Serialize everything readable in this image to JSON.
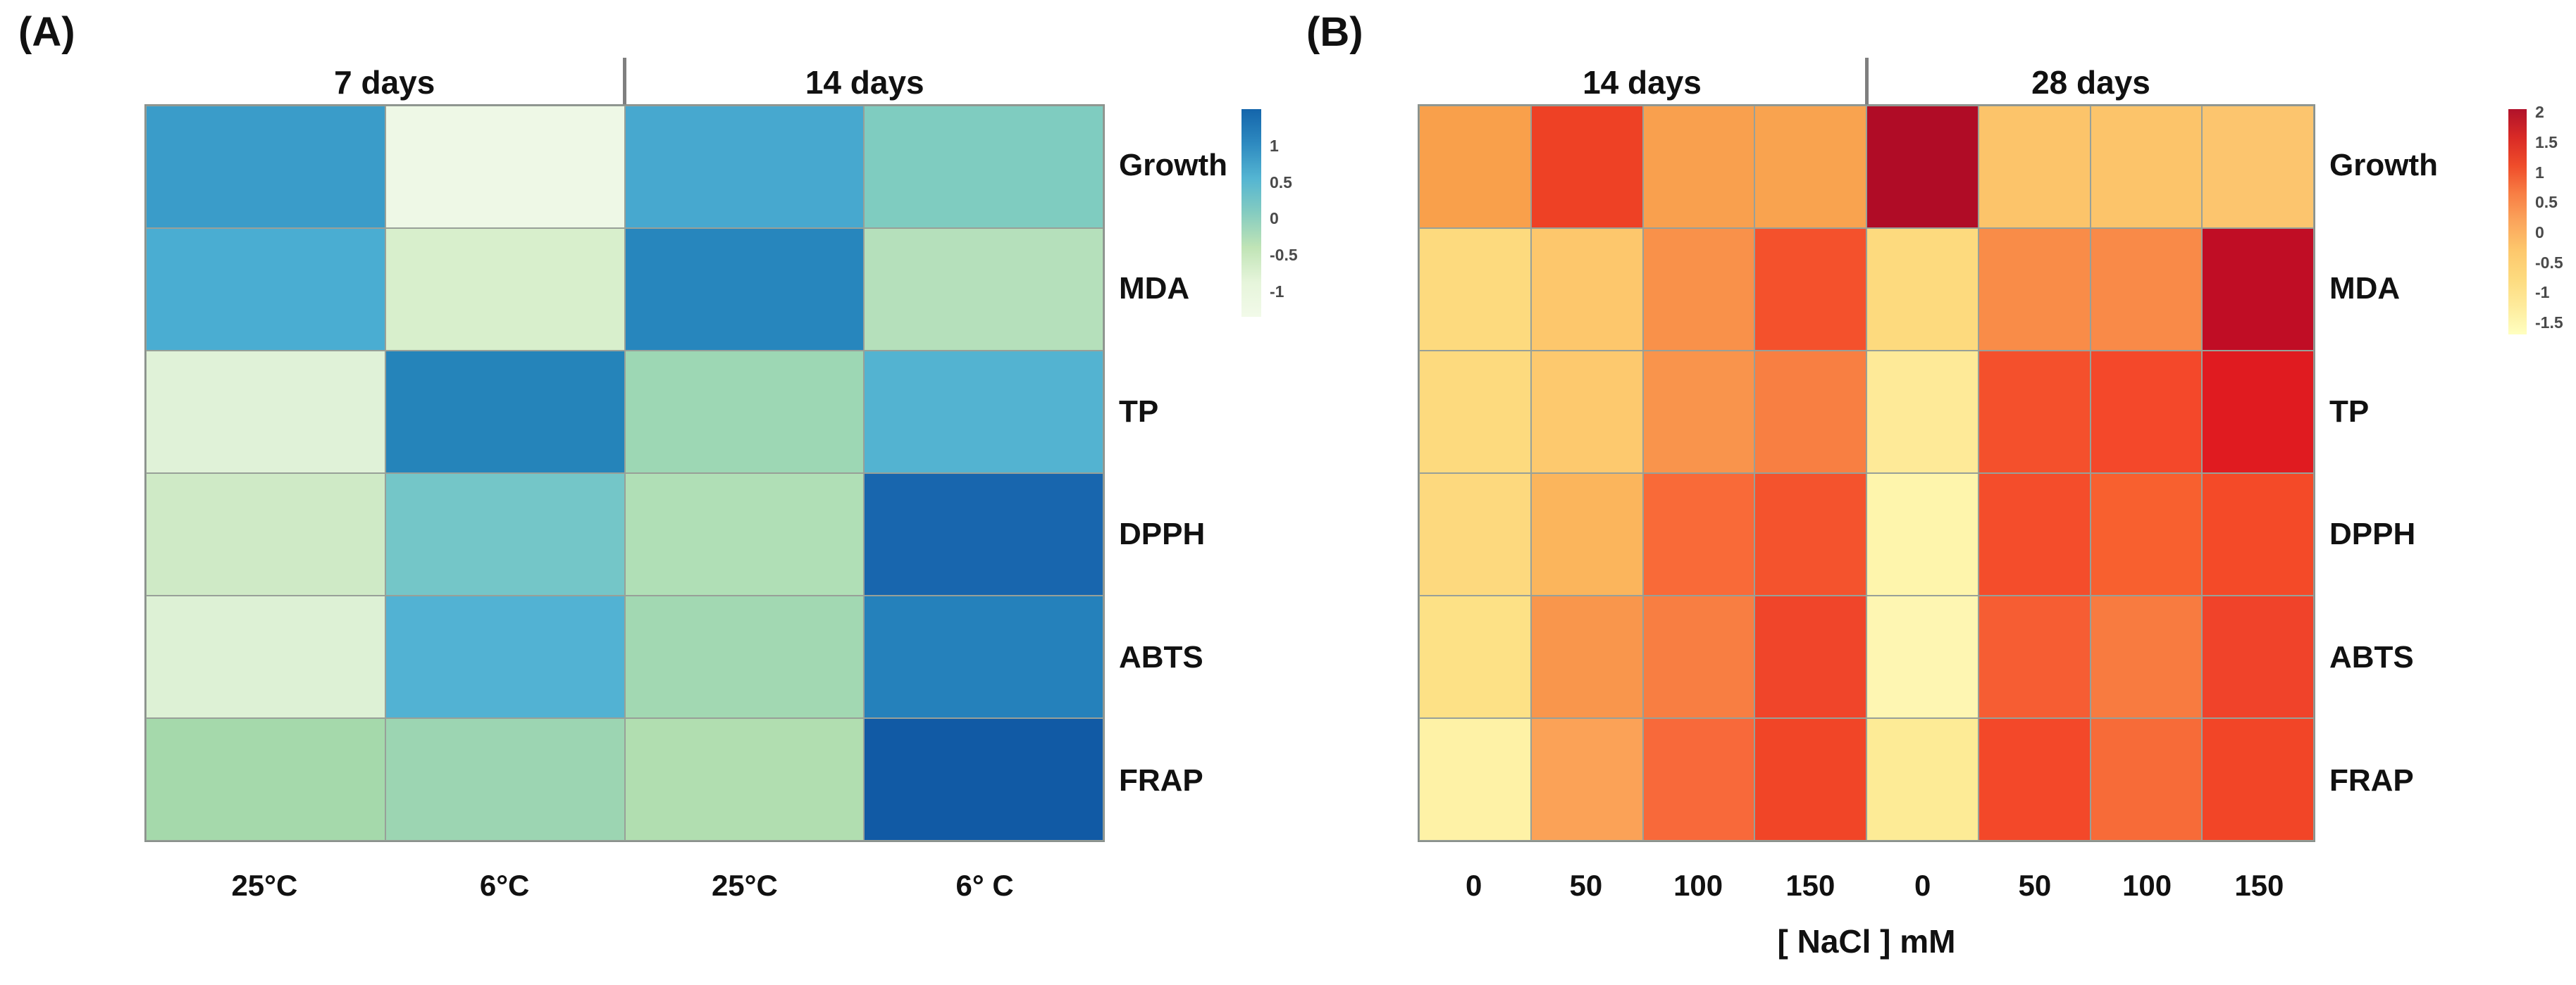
{
  "panels": [
    {
      "label": "(A)",
      "group_headers": [
        "7 days",
        "14 days"
      ],
      "row_labels": [
        "Growth",
        "MDA",
        "TP",
        "DPPH",
        "ABTS",
        "FRAP"
      ],
      "col_labels": [
        "25°C",
        "6°C",
        "25°C",
        "6° C"
      ],
      "x_axis_title": "",
      "legend": {
        "ticks": [
          "1",
          "0.5",
          "0",
          "-0.5",
          "-1"
        ],
        "tick_values": [
          1,
          0.5,
          0,
          -0.5,
          -1
        ],
        "top_value": 1.5,
        "bottom_value": -1.35,
        "gradient": [
          "#1465ab",
          "#2e8ac0",
          "#54b5d2",
          "#85ccc0",
          "#c0e4b6",
          "#e6f5db",
          "#f2fae9"
        ]
      }
    },
    {
      "label": "(B)",
      "group_headers": [
        "14 days",
        "28 days"
      ],
      "row_labels": [
        "Growth",
        "MDA",
        "TP",
        "DPPH",
        "ABTS",
        "FRAP"
      ],
      "col_labels": [
        "0",
        "50",
        "100",
        "150",
        "0",
        "50",
        "100",
        "150"
      ],
      "x_axis_title": "[ NaCl ] mM",
      "legend": {
        "ticks": [
          "2",
          "1.5",
          "1",
          "0.5",
          "0",
          "-0.5",
          "-1",
          "-1.5"
        ],
        "tick_values": [
          2,
          1.5,
          1,
          0.5,
          0,
          -0.5,
          -1,
          -1.5
        ],
        "top_value": 2.05,
        "bottom_value": -1.7,
        "gradient": [
          "#b0122a",
          "#d92a26",
          "#ef4c2a",
          "#f87e44",
          "#fba55c",
          "#fdc76c",
          "#fdda7e",
          "#feeb9c",
          "#ffffc0"
        ]
      }
    }
  ],
  "chart_data": [
    {
      "type": "heatmap",
      "panel": "A",
      "column_groups": [
        "7 days",
        "14 days"
      ],
      "columns": [
        {
          "group": "7 days",
          "label": "25°C"
        },
        {
          "group": "7 days",
          "label": "6°C"
        },
        {
          "group": "14 days",
          "label": "25°C"
        },
        {
          "group": "14 days",
          "label": "6° C"
        }
      ],
      "rows": [
        "Growth",
        "MDA",
        "TP",
        "DPPH",
        "ABTS",
        "FRAP"
      ],
      "values": [
        [
          0.8,
          -1.15,
          0.65,
          0.05
        ],
        [
          0.6,
          -0.75,
          1.0,
          -0.45
        ],
        [
          -0.9,
          1.05,
          -0.2,
          0.55
        ],
        [
          -0.6,
          0.15,
          -0.4,
          1.25
        ],
        [
          -0.85,
          0.55,
          -0.3,
          1.0
        ],
        [
          -0.35,
          -0.25,
          -0.4,
          1.4
        ]
      ],
      "cell_colors": [
        [
          "#3a9cc9",
          "#eef8e6",
          "#47a8cf",
          "#7fccc0"
        ],
        [
          "#4aadd2",
          "#d8efcc",
          "#2786bd",
          "#b5e0bb"
        ],
        [
          "#e0f2d8",
          "#2584ba",
          "#9dd7b4",
          "#53b3d1"
        ],
        [
          "#cfeac6",
          "#74c6c8",
          "#b0dfb6",
          "#1866ae"
        ],
        [
          "#ddf1d5",
          "#52b2d3",
          "#a2d8b2",
          "#2581bb"
        ],
        [
          "#a5d9ab",
          "#9cd5b2",
          "#b1deb0",
          "#115aa5"
        ]
      ],
      "xlabel": "",
      "ylabel": "",
      "colorbar": {
        "ticks": [
          1,
          0.5,
          0,
          -0.5,
          -1
        ],
        "range": [
          -1.35,
          1.5
        ],
        "high_color": "#1465ab",
        "low_color": "#f2fae9"
      },
      "legend_position": "right",
      "grid": true
    },
    {
      "type": "heatmap",
      "panel": "B",
      "column_groups": [
        "14 days",
        "28 days"
      ],
      "columns": [
        {
          "group": "14 days",
          "label": "0"
        },
        {
          "group": "14 days",
          "label": "50"
        },
        {
          "group": "14 days",
          "label": "100"
        },
        {
          "group": "14 days",
          "label": "150"
        },
        {
          "group": "28 days",
          "label": "0"
        },
        {
          "group": "28 days",
          "label": "50"
        },
        {
          "group": "28 days",
          "label": "100"
        },
        {
          "group": "28 days",
          "label": "150"
        }
      ],
      "rows": [
        "Growth",
        "MDA",
        "TP",
        "DPPH",
        "ABTS",
        "FRAP"
      ],
      "values": [
        [
          -0.3,
          1.1,
          -0.3,
          -0.35,
          2.0,
          -0.75,
          -0.75,
          -0.78
        ],
        [
          -1.05,
          -0.8,
          -0.15,
          0.9,
          -1.05,
          -0.1,
          -0.08,
          1.85
        ],
        [
          -1.05,
          -0.82,
          -0.18,
          0.1,
          -1.35,
          0.92,
          1.0,
          1.45
        ],
        [
          -1.03,
          -0.55,
          0.45,
          0.88,
          -1.55,
          0.95,
          0.6,
          0.98
        ],
        [
          -1.15,
          -0.2,
          0.12,
          1.05,
          -1.6,
          0.7,
          0.15,
          1.08
        ],
        [
          -1.5,
          -0.35,
          0.47,
          1.05,
          -1.35,
          1.0,
          0.45,
          1.03
        ]
      ],
      "cell_colors": [
        [
          "#f9a04b",
          "#ee4125",
          "#f9a04e",
          "#f9a34f",
          "#b00c26",
          "#fcc46a",
          "#fcc46a",
          "#fcc56e"
        ],
        [
          "#fdda7e",
          "#fdc76c",
          "#f9914a",
          "#f4512c",
          "#fdda7e",
          "#f98c48",
          "#f98a48",
          "#c00d25"
        ],
        [
          "#fdda7e",
          "#fdc96e",
          "#f9944c",
          "#f87f42",
          "#feea98",
          "#f4502c",
          "#f4482a",
          "#e01b20"
        ],
        [
          "#fdd97e",
          "#fbb55c",
          "#f96a38",
          "#f4532d",
          "#fef5ac",
          "#f44d2b",
          "#f8602f",
          "#f44a28"
        ],
        [
          "#fde186",
          "#f9964c",
          "#f87e42",
          "#f0452a",
          "#fef6b2",
          "#f65d33",
          "#f87b40",
          "#f0432a"
        ],
        [
          "#fef2a6",
          "#fba257",
          "#f8693a",
          "#f14527",
          "#fdeb96",
          "#f34829",
          "#f76b38",
          "#f24527"
        ]
      ],
      "xlabel": "[ NaCl ] mM",
      "ylabel": "",
      "colorbar": {
        "ticks": [
          2,
          1.5,
          1,
          0.5,
          0,
          -0.5,
          -1,
          -1.5
        ],
        "range": [
          -1.7,
          2.05
        ],
        "high_color": "#b0122a",
        "low_color": "#ffffc0"
      },
      "legend_position": "right",
      "grid": true
    }
  ]
}
